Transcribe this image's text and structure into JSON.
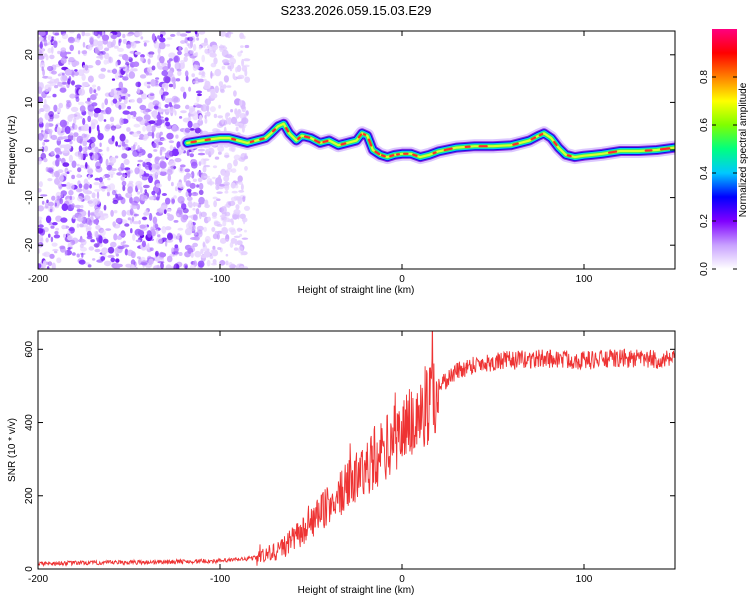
{
  "figure": {
    "title": "S233.2026.059.15.03.E29"
  },
  "colorbar": {
    "label": "Normalized spectral amplitude",
    "ticks": [
      "0.0",
      "0.2",
      "0.4",
      "0.6",
      "0.8"
    ],
    "tick_values": [
      0.0,
      0.2,
      0.4,
      0.6,
      0.8
    ],
    "range": [
      0,
      1
    ],
    "stops": [
      "#ffffff",
      "#c8a0ff",
      "#8000ff",
      "#0000ff",
      "#00c8ff",
      "#00ff80",
      "#80ff00",
      "#ffff00",
      "#ff8000",
      "#ff0000",
      "#ff0080"
    ]
  },
  "chart_data": [
    {
      "type": "heatmap",
      "name": "spectrogram",
      "xlabel": "Height of straight line (km)",
      "ylabel": "Frequency (Hz)",
      "xlim": [
        -200,
        150
      ],
      "ylim": [
        -25,
        25
      ],
      "xticks": [
        -200,
        -100,
        0,
        100
      ],
      "xtick_labels": [
        "-200",
        "-100",
        "0",
        "100"
      ],
      "yticks": [
        -20,
        -10,
        0,
        10,
        20
      ],
      "ytick_labels": [
        "-20",
        "-10",
        "0",
        "10",
        "20"
      ],
      "noise_region_x": [
        -200,
        -85
      ],
      "peak_track": {
        "x": [
          -118,
          -110,
          -100,
          -95,
          -90,
          -85,
          -80,
          -75,
          -72,
          -68,
          -65,
          -62,
          -58,
          -55,
          -50,
          -45,
          -40,
          -35,
          -30,
          -25,
          -22,
          -19,
          -16,
          -12,
          -8,
          -4,
          0,
          5,
          10,
          15,
          20,
          30,
          40,
          50,
          60,
          65,
          70,
          75,
          78,
          82,
          86,
          90,
          95,
          100,
          105,
          110,
          120,
          130,
          140,
          150
        ],
        "y": [
          1.5,
          2.0,
          2.5,
          2.5,
          2.0,
          1.5,
          2.0,
          2.5,
          3.5,
          5.0,
          5.5,
          3.5,
          2.0,
          3.0,
          2.5,
          1.5,
          2.0,
          1.0,
          1.5,
          2.0,
          3.5,
          3.0,
          0.0,
          -1.0,
          -1.5,
          -1.0,
          -0.8,
          -0.8,
          -1.5,
          -1.0,
          -0.3,
          0.5,
          0.8,
          0.8,
          1.0,
          1.5,
          2.0,
          3.0,
          3.5,
          2.5,
          0.5,
          -1.0,
          -1.5,
          -1.2,
          -1.0,
          -0.8,
          -0.2,
          -0.2,
          0.0,
          0.5
        ]
      }
    },
    {
      "type": "line",
      "name": "snr",
      "xlabel": "Height of straight line (km)",
      "ylabel": "SNR (10 * v/v)",
      "xlim": [
        -200,
        150
      ],
      "ylim": [
        0,
        650
      ],
      "xticks": [
        -200,
        -100,
        0,
        100
      ],
      "xtick_labels": [
        "-200",
        "-100",
        "0",
        "100"
      ],
      "yticks": [
        0,
        200,
        400,
        600
      ],
      "ytick_labels": [
        "0",
        "200",
        "400",
        "600"
      ],
      "color": "#ee3333",
      "trend": {
        "x": [
          -200,
          -150,
          -100,
          -85,
          -75,
          -65,
          -55,
          -45,
          -35,
          -25,
          -15,
          -5,
          0,
          10,
          20,
          30,
          40,
          60,
          80,
          100,
          120,
          150
        ],
        "y": [
          15,
          18,
          22,
          28,
          35,
          60,
          100,
          150,
          200,
          250,
          300,
          350,
          380,
          420,
          500,
          540,
          560,
          570,
          575,
          570,
          575,
          570
        ]
      }
    }
  ]
}
